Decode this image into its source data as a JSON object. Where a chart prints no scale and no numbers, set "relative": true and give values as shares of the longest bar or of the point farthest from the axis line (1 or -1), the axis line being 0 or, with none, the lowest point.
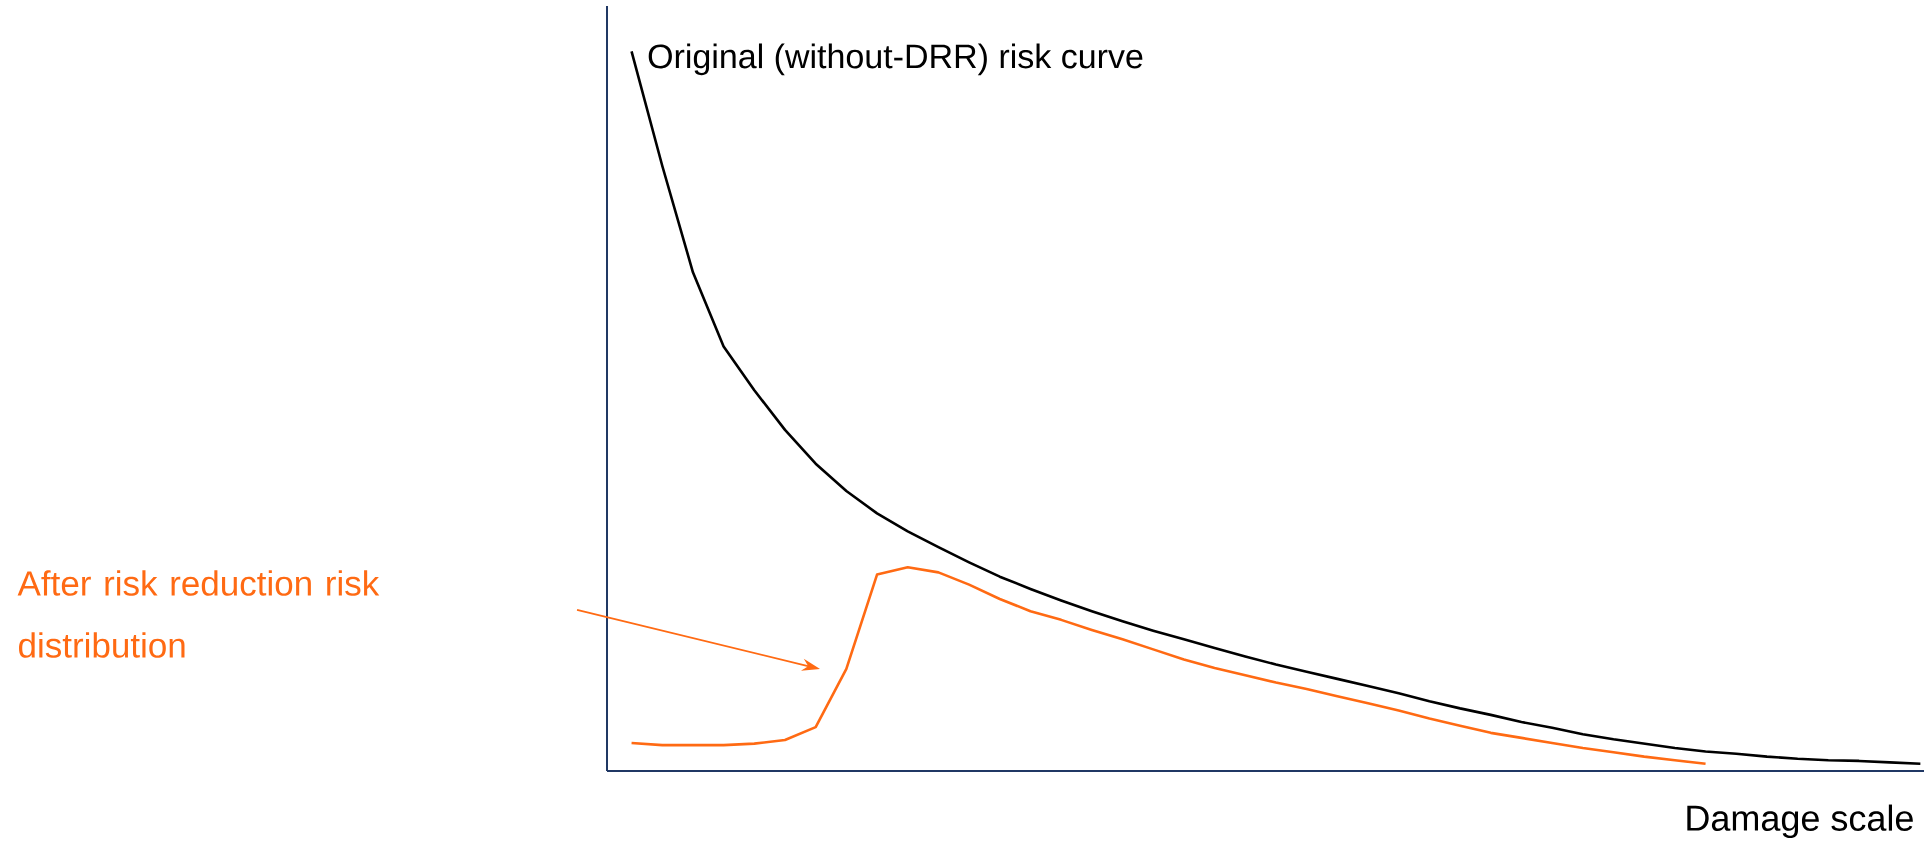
{
  "chart_data": {
    "type": "line",
    "relative": true,
    "xlabel": "Damage scale",
    "categories": [
      null,
      null,
      null,
      null,
      null,
      null,
      null,
      null,
      null,
      null,
      null,
      null,
      null,
      null,
      null,
      null,
      null,
      null,
      null,
      null,
      null,
      null,
      null,
      null,
      null,
      null,
      null,
      null,
      null,
      null,
      null,
      null,
      null,
      null,
      null,
      null,
      null,
      null,
      null,
      null,
      null,
      null,
      null
    ],
    "series": [
      {
        "name": "Original (without-DRR) risk curve",
        "color": "#000000",
        "values": [
          1,
          0.841,
          0.693,
          0.59,
          0.529,
          0.474,
          0.427,
          0.389,
          0.358,
          0.333,
          0.311,
          0.29,
          0.27,
          0.253,
          0.237,
          0.222,
          0.208,
          0.195,
          0.183,
          0.171,
          0.159,
          0.148,
          0.138,
          0.128,
          0.118,
          0.108,
          0.097,
          0.087,
          0.078,
          0.068,
          0.06,
          0.051,
          0.044,
          0.038,
          0.032,
          0.027,
          0.024,
          0.02,
          0.017,
          0.015,
          0.014,
          0.012,
          0.01
        ]
      },
      {
        "name": "After risk reduction risk distribution",
        "color": "#ff6a13",
        "values": [
          0.039,
          0.036,
          0.036,
          0.036,
          0.038,
          0.043,
          0.061,
          0.142,
          0.273,
          0.283,
          0.276,
          0.259,
          0.239,
          0.222,
          0.21,
          0.196,
          0.183,
          0.169,
          0.155,
          0.143,
          0.133,
          0.123,
          0.114,
          0.104,
          0.094,
          0.084,
          0.073,
          0.063,
          0.053,
          0.046,
          0.039,
          0.032,
          0.026,
          0.02,
          0.015,
          0.01,
          null,
          null,
          null,
          null,
          null,
          null,
          null
        ]
      }
    ],
    "line_style": "solid"
  }
}
